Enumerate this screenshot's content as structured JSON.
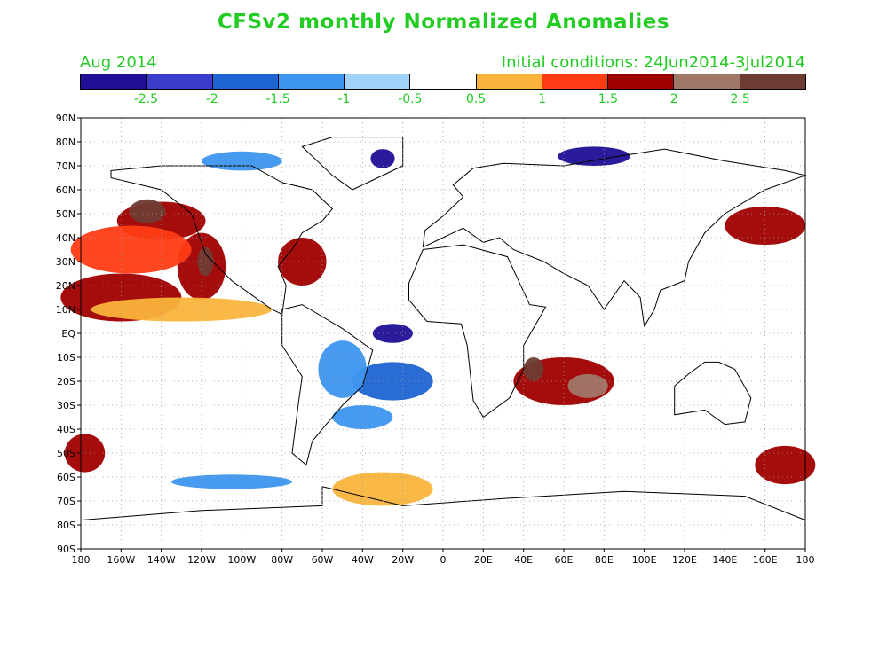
{
  "title": "CFSv2 monthly Normalized Anomalies",
  "month": "Aug 2014",
  "initial_conditions": "Initial conditions: 24Jun2014-3Jul2014",
  "colorbar": {
    "colors": [
      "#1f0f96",
      "#3c3ccc",
      "#1e64d2",
      "#3c96f0",
      "#a0d2fa",
      "#ffffff",
      "#fab43c",
      "#ff3c14",
      "#a00000",
      "#a07868",
      "#6e3c32"
    ],
    "labels": [
      "-2.5",
      "-2",
      "-1.5",
      "-1",
      "-0.5",
      "0.5",
      "1",
      "1.5",
      "2",
      "2.5"
    ]
  },
  "map": {
    "lon_labels": [
      "180",
      "160W",
      "140W",
      "120W",
      "100W",
      "80W",
      "60W",
      "40W",
      "20W",
      "0",
      "20E",
      "40E",
      "60E",
      "80E",
      "100E",
      "120E",
      "140E",
      "160E",
      "180"
    ],
    "lat_labels": [
      "90N",
      "80N",
      "70N",
      "60N",
      "50N",
      "40N",
      "30N",
      "20N",
      "10N",
      "EQ",
      "10S",
      "20S",
      "30S",
      "40S",
      "50S",
      "60S",
      "70S",
      "80S",
      "90S"
    ],
    "anomaly_regions": [
      {
        "name": "ne-pacific-warm",
        "lon": -140,
        "lat": 47,
        "rx": 22,
        "ry": 8,
        "level": 1.5
      },
      {
        "name": "ne-pacific-core",
        "lon": -147,
        "lat": 51,
        "rx": 9,
        "ry": 5,
        "level": 2.5
      },
      {
        "name": "baja-warm",
        "lon": -120,
        "lat": 28,
        "rx": 12,
        "ry": 14,
        "level": 1.5
      },
      {
        "name": "baja-core",
        "lon": -118,
        "lat": 30,
        "rx": 4,
        "ry": 6,
        "level": 2.5
      },
      {
        "name": "north-pacific-belt",
        "lon": -155,
        "lat": 35,
        "rx": 30,
        "ry": 10,
        "level": 1
      },
      {
        "name": "tropical-pacific-warm",
        "lon": -160,
        "lat": 15,
        "rx": 30,
        "ry": 10,
        "level": 1.5
      },
      {
        "name": "tropical-pacific-band",
        "lon": -130,
        "lat": 10,
        "rx": 45,
        "ry": 5,
        "level": 0.5
      },
      {
        "name": "us-east-coast-warm",
        "lon": -70,
        "lat": 30,
        "rx": 12,
        "ry": 10,
        "level": 1.5
      },
      {
        "name": "greenland-cold",
        "lon": -30,
        "lat": 73,
        "rx": 6,
        "ry": 4,
        "level": -2.5
      },
      {
        "name": "canada-arctic-cold",
        "lon": -100,
        "lat": 72,
        "rx": 20,
        "ry": 4,
        "level": -1
      },
      {
        "name": "atlantic-eq-cold",
        "lon": -25,
        "lat": 0,
        "rx": 10,
        "ry": 4,
        "level": -2.5
      },
      {
        "name": "south-atlantic-cold",
        "lon": -25,
        "lat": -20,
        "rx": 20,
        "ry": 8,
        "level": -1.5
      },
      {
        "name": "south-america-cold",
        "lon": -50,
        "lat": -15,
        "rx": 12,
        "ry": 12,
        "level": -1
      },
      {
        "name": "south-atlantic-cold-2",
        "lon": -40,
        "lat": -35,
        "rx": 15,
        "ry": 5,
        "level": -1
      },
      {
        "name": "indian-ocean-warm",
        "lon": 60,
        "lat": -20,
        "rx": 25,
        "ry": 10,
        "level": 1.5
      },
      {
        "name": "indian-ocean-core",
        "lon": 72,
        "lat": -22,
        "rx": 10,
        "ry": 5,
        "level": 2
      },
      {
        "name": "madagascar-core",
        "lon": 45,
        "lat": -15,
        "rx": 5,
        "ry": 5,
        "level": 2.5
      },
      {
        "name": "east-siberia-cold",
        "lon": 75,
        "lat": 74,
        "rx": 18,
        "ry": 4,
        "level": -2.5
      },
      {
        "name": "nw-pacific-warm",
        "lon": 160,
        "lat": 45,
        "rx": 20,
        "ry": 8,
        "level": 1.5
      },
      {
        "name": "south-pacific-cold",
        "lon": -105,
        "lat": -62,
        "rx": 30,
        "ry": 3,
        "level": -1
      },
      {
        "name": "southern-ocean-warm",
        "lon": -30,
        "lat": -65,
        "rx": 25,
        "ry": 7,
        "level": 0.5
      },
      {
        "name": "tasman-warm",
        "lon": 170,
        "lat": -55,
        "rx": 15,
        "ry": 8,
        "level": 1.5
      },
      {
        "name": "se-pacific-warm",
        "lon": -178,
        "lat": -50,
        "rx": 10,
        "ry": 8,
        "level": 1.5
      }
    ]
  }
}
